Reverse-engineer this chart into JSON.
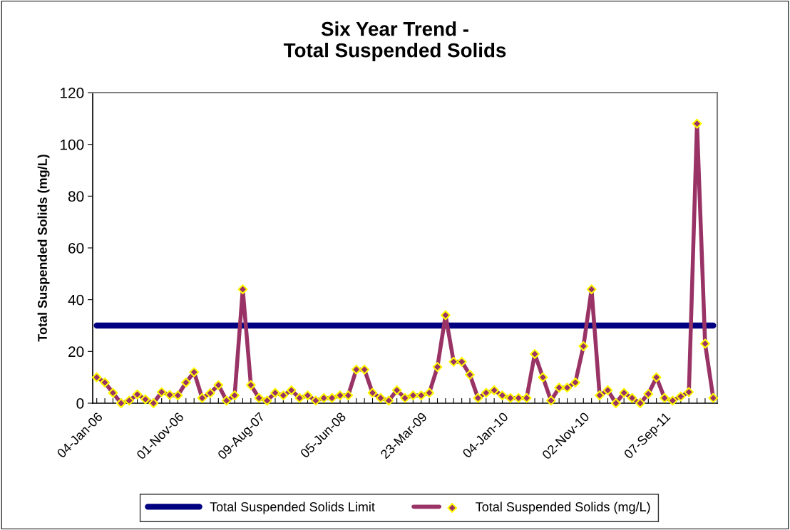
{
  "chart_data": {
    "type": "line",
    "title": "Six Year Trend -\nTotal Suspended Solids",
    "ylabel": "Total Suspended Solids (mg/L)",
    "categories": [
      "04-Jan-06",
      null,
      null,
      null,
      null,
      null,
      null,
      null,
      null,
      null,
      "01-Nov-06",
      null,
      null,
      null,
      null,
      null,
      null,
      null,
      null,
      null,
      "09-Aug-07",
      null,
      null,
      null,
      null,
      null,
      null,
      null,
      null,
      null,
      "05-Jun-08",
      null,
      null,
      null,
      null,
      null,
      null,
      null,
      null,
      null,
      "23-Mar-09",
      null,
      null,
      null,
      null,
      null,
      null,
      null,
      null,
      null,
      "04-Jan-10",
      null,
      null,
      null,
      null,
      null,
      null,
      null,
      null,
      null,
      "02-Nov-10",
      null,
      null,
      null,
      null,
      null,
      null,
      null,
      null,
      null,
      "07-Sep-11",
      null,
      null,
      null,
      null,
      null,
      null
    ],
    "series": [
      {
        "name": "Total Suspended Solids Limit",
        "color": "#000080",
        "marker": "none",
        "values": [
          30,
          30,
          30,
          30,
          30,
          30,
          30,
          30,
          30,
          30,
          30,
          30,
          30,
          30,
          30,
          30,
          30,
          30,
          30,
          30,
          30,
          30,
          30,
          30,
          30,
          30,
          30,
          30,
          30,
          30,
          30,
          30,
          30,
          30,
          30,
          30,
          30,
          30,
          30,
          30,
          30,
          30,
          30,
          30,
          30,
          30,
          30,
          30,
          30,
          30,
          30,
          30,
          30,
          30,
          30,
          30,
          30,
          30,
          30,
          30,
          30,
          30,
          30,
          30,
          30,
          30,
          30,
          30,
          30,
          30,
          30,
          30,
          30,
          30,
          30,
          30,
          30
        ]
      },
      {
        "name": "Total Suspended Solids (mg/L)",
        "color": "#993366",
        "marker": "diamond",
        "values": [
          10,
          8,
          4,
          0,
          1,
          3.4,
          1.5,
          0,
          4.3,
          3.2,
          3,
          8,
          12,
          2,
          3.9,
          7,
          1,
          3,
          44,
          7,
          2,
          1,
          4,
          3,
          5,
          2,
          3,
          1,
          2,
          2,
          3,
          3,
          13,
          13,
          4,
          2,
          1,
          5,
          2,
          3,
          3,
          4,
          14,
          34,
          16,
          16,
          11,
          2,
          4,
          5,
          3,
          2,
          2,
          2,
          19,
          10,
          1,
          6,
          6,
          8,
          22,
          44,
          3,
          5,
          0,
          4,
          2,
          0,
          3.6,
          10,
          2,
          1,
          2.6,
          4.3,
          108,
          23,
          2
        ]
      }
    ],
    "ylim": [
      0,
      120
    ],
    "yticks": [
      0,
      20,
      40,
      60,
      80,
      100,
      120
    ],
    "grid": false,
    "legend": "bottom"
  }
}
